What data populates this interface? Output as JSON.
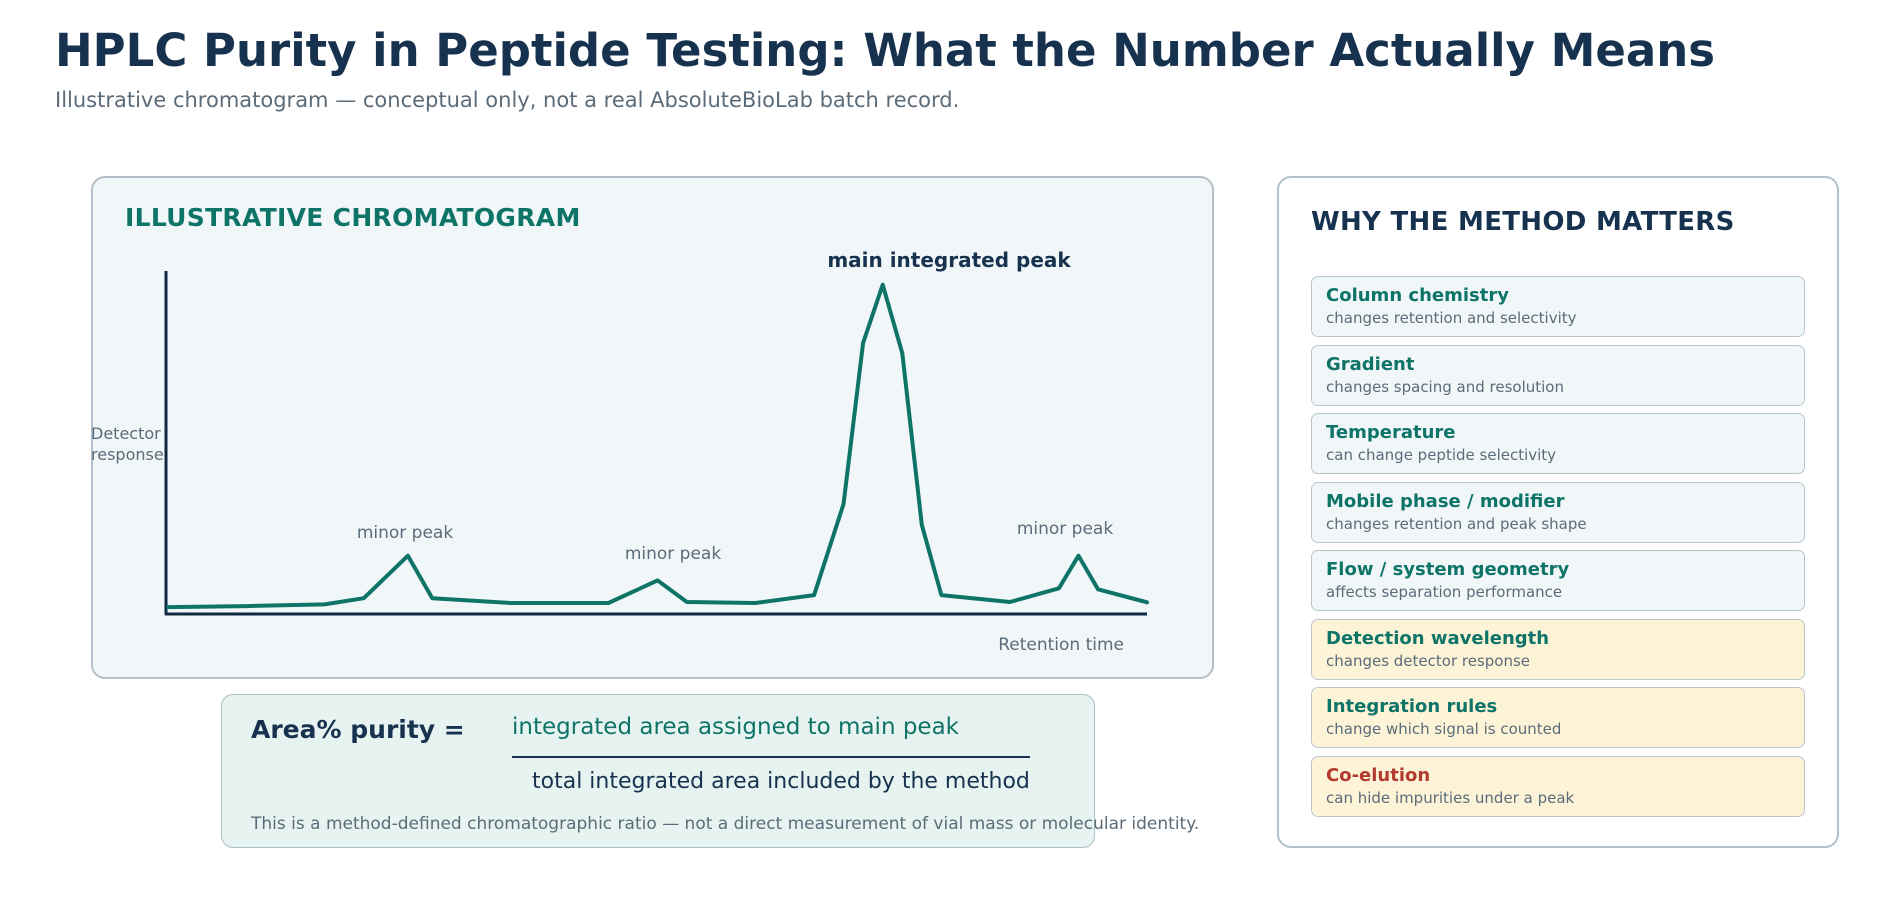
{
  "header": {
    "title": "HPLC Purity in Peptide Testing: What the Number Actually Means",
    "subtitle": "Illustrative chromatogram — conceptual only, not a real AbsoluteBioLab batch record."
  },
  "chromatogram": {
    "heading": "ILLUSTRATIVE CHROMATOGRAM",
    "y_label": [
      "Detector",
      "response"
    ],
    "x_label": "Retention time",
    "peaks": {
      "minor_1": "minor peak",
      "minor_2": "minor peak",
      "minor_3": "minor peak",
      "main": "main integrated peak"
    },
    "trace_color": "#0e7468",
    "trace": [
      [
        0,
        2
      ],
      [
        8,
        2.3
      ],
      [
        16,
        2.8
      ],
      [
        20,
        4.6
      ],
      [
        24.5,
        17
      ],
      [
        27,
        4.6
      ],
      [
        35,
        3.2
      ],
      [
        45,
        3.2
      ],
      [
        50,
        9.8
      ],
      [
        53,
        3.5
      ],
      [
        60,
        3.2
      ],
      [
        66,
        5.5
      ],
      [
        69,
        32
      ],
      [
        71,
        79
      ],
      [
        73,
        96
      ],
      [
        75,
        76
      ],
      [
        77,
        26
      ],
      [
        79,
        5.5
      ],
      [
        86,
        3.5
      ],
      [
        91,
        7.5
      ],
      [
        93,
        17
      ],
      [
        95,
        7.2
      ],
      [
        100,
        3.4
      ]
    ]
  },
  "formula": {
    "lhs": "Area% purity =",
    "numerator": "integrated area assigned to main peak",
    "denominator": "total integrated area included by the method",
    "note": "This is a method-defined chromatographic ratio — not a direct measurement of vial mass or molecular identity."
  },
  "method": {
    "heading": "WHY THE METHOD MATTERS",
    "items": [
      {
        "name": "Column chemistry",
        "desc": "changes retention and selectivity",
        "tone": "neutral"
      },
      {
        "name": "Gradient",
        "desc": "changes spacing and resolution",
        "tone": "neutral"
      },
      {
        "name": "Temperature",
        "desc": "can change peptide selectivity",
        "tone": "neutral"
      },
      {
        "name": "Mobile phase / modifier",
        "desc": "changes retention and peak shape",
        "tone": "neutral"
      },
      {
        "name": "Flow / system geometry",
        "desc": "affects separation performance",
        "tone": "neutral"
      },
      {
        "name": "Detection wavelength",
        "desc": "changes detector response",
        "tone": "warn"
      },
      {
        "name": "Integration rules",
        "desc": "change which signal is counted",
        "tone": "warn"
      },
      {
        "name": "Co-elution",
        "desc": "can hide impurities under a peak",
        "tone": "alert"
      }
    ]
  }
}
